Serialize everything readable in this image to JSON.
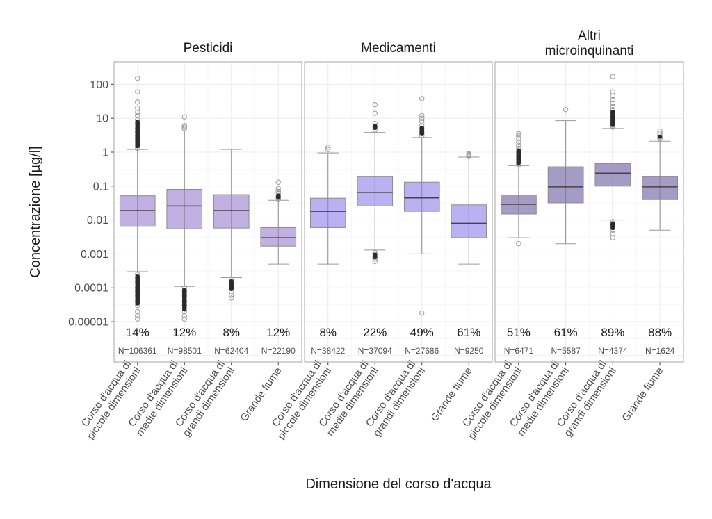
{
  "chart_data": {
    "type": "boxplot",
    "xlabel": "Dimensione del corso d'acqua",
    "ylabel": "Concentrazione [µg/l]",
    "yscale": "log10",
    "ylim": [
      6.5e-07,
      460
    ],
    "yticks": [
      100,
      10,
      1,
      0.1,
      0.01,
      0.001,
      0.0001,
      1e-05
    ],
    "ytick_labels": [
      "100",
      "10",
      "1",
      "0.1",
      "0.01",
      "0.001",
      "0.0001",
      "0.00001"
    ],
    "grid": true,
    "categories": [
      "Corso d'acqua di|piccole dimensioni",
      "Corso d'acqua di|medie dimensioni",
      "Corso d'acqua di|grandi dimensioni",
      "Grande fiume"
    ],
    "panels": [
      {
        "title": "Pesticidi",
        "color": "#b19cd9",
        "boxes": [
          {
            "q1": 0.0065,
            "median": 0.019,
            "q3": 0.052,
            "whisker_low": 0.0003,
            "whisker_high": 1.2,
            "outliers_high": [
              150,
              60,
              30,
              20,
              15,
              12,
              9,
              7,
              5,
              4,
              3,
              2.5,
              2,
              1.6,
              1.3
            ],
            "outliers_low": [
              0.00025,
              0.0002,
              0.00015,
              0.0001,
              8e-05,
              6e-05,
              4e-05,
              3e-05,
              2e-05,
              1.5e-05,
              1.2e-05
            ],
            "pct": "14%",
            "n": "N=106361"
          },
          {
            "q1": 0.0055,
            "median": 0.026,
            "q3": 0.08,
            "whisker_low": 0.00011,
            "whisker_high": 4.2,
            "outliers_high": [
              11,
              6,
              5.5,
              5
            ],
            "outliers_low": [
              0.0001,
              8e-05,
              6e-05,
              4e-05,
              3e-05,
              2e-05,
              1.5e-05,
              1.2e-05
            ],
            "pct": "12%",
            "n": "N=98501"
          },
          {
            "q1": 0.0058,
            "median": 0.019,
            "q3": 0.056,
            "whisker_low": 0.0002,
            "whisker_high": 1.2,
            "outliers_high": [],
            "outliers_low": [
              0.00018,
              0.00015,
              0.00012,
              0.0001,
              8e-05,
              6e-05,
              5e-05
            ],
            "pct": "8%",
            "n": "N=62404"
          },
          {
            "q1": 0.0017,
            "median": 0.003,
            "q3": 0.006,
            "whisker_low": 0.0005,
            "whisker_high": 0.038,
            "outliers_high": [
              0.13,
              0.085,
              0.07,
              0.06,
              0.05,
              0.045,
              0.04
            ],
            "outliers_low": [],
            "pct": "12%",
            "n": "N=22190"
          }
        ]
      },
      {
        "title": "Medicamenti",
        "color": "#a99ef0",
        "boxes": [
          {
            "q1": 0.006,
            "median": 0.018,
            "q3": 0.044,
            "whisker_low": 0.0005,
            "whisker_high": 0.95,
            "outliers_high": [
              1.4,
              1.2
            ],
            "outliers_low": [],
            "pct": "8%",
            "n": "N=38422"
          },
          {
            "q1": 0.026,
            "median": 0.065,
            "q3": 0.19,
            "whisker_low": 0.0013,
            "whisker_high": 3.8,
            "outliers_high": [
              25,
              14,
              7,
              5.5,
              4.5
            ],
            "outliers_low": [
              0.0011,
              0.001,
              0.0008,
              0.0007,
              0.0006
            ],
            "pct": "22%",
            "n": "N=37094"
          },
          {
            "q1": 0.018,
            "median": 0.045,
            "q3": 0.13,
            "whisker_low": 0.001,
            "whisker_high": 2.7,
            "outliers_high": [
              38,
              12,
              10,
              8,
              6,
              5,
              4,
              3.5,
              3
            ],
            "outliers_low": [
              1.8e-05
            ],
            "pct": "49%",
            "n": "N=27686"
          },
          {
            "q1": 0.003,
            "median": 0.008,
            "q3": 0.028,
            "whisker_low": 0.0005,
            "whisker_high": 0.72,
            "outliers_high": [
              0.9,
              0.85,
              0.8,
              0.75
            ],
            "outliers_low": [],
            "pct": "61%",
            "n": "N=9250"
          }
        ]
      },
      {
        "title": "Altri|microinquinanti",
        "color": "#8e83b8",
        "boxes": [
          {
            "q1": 0.015,
            "median": 0.029,
            "q3": 0.055,
            "whisker_low": 0.003,
            "whisker_high": 0.4,
            "outliers_high": [
              3.5,
              3,
              2.5,
              2,
              1.6,
              1.3,
              1,
              0.8,
              0.7,
              0.6,
              0.5,
              0.45,
              0.42
            ],
            "outliers_low": [
              0.002
            ],
            "pct": "51%",
            "n": "N=6471"
          },
          {
            "q1": 0.032,
            "median": 0.095,
            "q3": 0.37,
            "whisker_low": 0.002,
            "whisker_high": 8.5,
            "outliers_high": [
              18
            ],
            "outliers_low": [],
            "pct": "61%",
            "n": "N=5587"
          },
          {
            "q1": 0.1,
            "median": 0.24,
            "q3": 0.46,
            "whisker_low": 0.01,
            "whisker_high": 5,
            "outliers_high": [
              170,
              60,
              45,
              35,
              28,
              22,
              18,
              15,
              12,
              10,
              8.5,
              7,
              6,
              5.5
            ],
            "outliers_low": [
              0.009,
              0.008,
              0.007,
              0.006,
              0.005,
              0.004,
              0.003
            ],
            "pct": "89%",
            "n": "N=4374"
          },
          {
            "q1": 0.04,
            "median": 0.095,
            "q3": 0.19,
            "whisker_low": 0.005,
            "whisker_high": 2.1,
            "outliers_high": [
              4.2,
              3.6,
              3.2,
              2.8,
              2.5
            ],
            "outliers_low": [],
            "pct": "88%",
            "n": "N=1624"
          }
        ]
      }
    ]
  }
}
